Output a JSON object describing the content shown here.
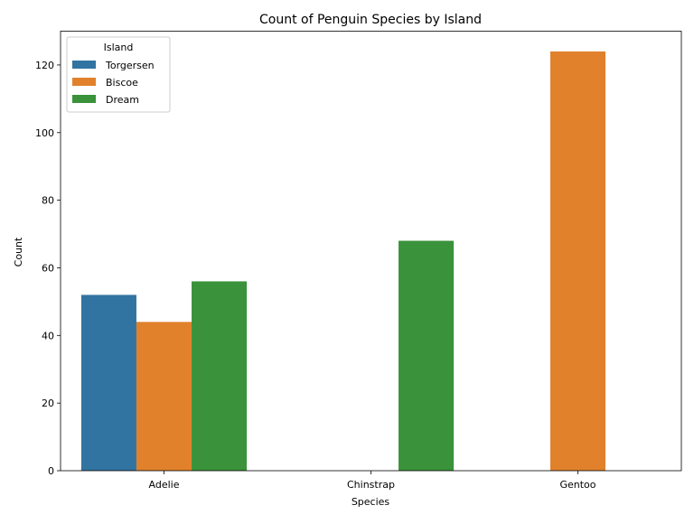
{
  "chart_data": {
    "type": "bar",
    "title": "Count of Penguin Species by Island",
    "xlabel": "Species",
    "ylabel": "Count",
    "categories": [
      "Adelie",
      "Chinstrap",
      "Gentoo"
    ],
    "series": [
      {
        "name": "Torgersen",
        "color": "#3274a1",
        "values": [
          52,
          null,
          null
        ]
      },
      {
        "name": "Biscoe",
        "color": "#e1812c",
        "values": [
          44,
          null,
          124
        ]
      },
      {
        "name": "Dream",
        "color": "#3a923a",
        "values": [
          56,
          68,
          null
        ]
      }
    ],
    "ylim": [
      0,
      130
    ],
    "yticks": [
      0,
      20,
      40,
      60,
      80,
      100,
      120
    ],
    "grid": false,
    "legend": {
      "title": "Island",
      "position": "top-left"
    }
  }
}
